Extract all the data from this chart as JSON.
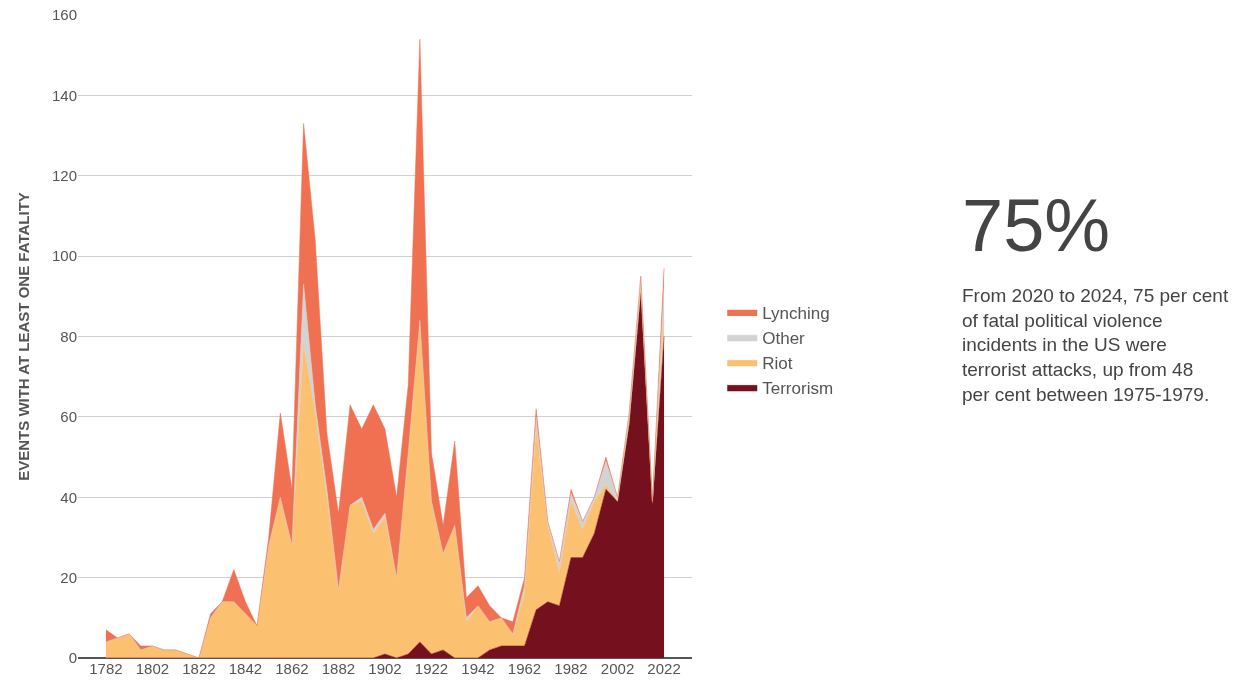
{
  "chart_data": {
    "type": "area",
    "stacked": true,
    "ylabel": "EVENTS WITH AT LEAST ONE FATALITY",
    "x": [
      1782,
      1787,
      1792,
      1797,
      1802,
      1807,
      1812,
      1817,
      1822,
      1827,
      1832,
      1837,
      1842,
      1847,
      1852,
      1857,
      1862,
      1867,
      1872,
      1877,
      1882,
      1887,
      1892,
      1897,
      1902,
      1907,
      1912,
      1917,
      1922,
      1927,
      1932,
      1937,
      1942,
      1947,
      1952,
      1957,
      1962,
      1967,
      1972,
      1977,
      1982,
      1987,
      1992,
      1997,
      2002,
      2007,
      2012,
      2017,
      2022
    ],
    "series": [
      {
        "name": "Terrorism",
        "color": "#75111f",
        "values": [
          0,
          0,
          0,
          0,
          0,
          0,
          0,
          0,
          0,
          0,
          0,
          0,
          0,
          0,
          0,
          0,
          0,
          0,
          0,
          0,
          0,
          0,
          0,
          0,
          1,
          0,
          1,
          4,
          1,
          2,
          0,
          0,
          0,
          2,
          3,
          3,
          3,
          12,
          14,
          13,
          25,
          25,
          31,
          42,
          39,
          58,
          91,
          38,
          80
        ]
      },
      {
        "name": "Riot",
        "color": "#fbc170",
        "values": [
          4,
          5,
          6,
          2,
          3,
          2,
          2,
          1,
          0,
          10,
          14,
          14,
          11,
          8,
          28,
          40,
          28,
          78,
          61,
          40,
          17,
          38,
          39,
          31,
          34,
          20,
          50,
          80,
          38,
          24,
          33,
          9,
          13,
          7,
          7,
          3,
          13,
          45,
          19,
          8,
          14,
          7,
          8,
          1,
          0,
          1,
          1,
          1,
          4
        ]
      },
      {
        "name": "Other",
        "color": "#d3d3d3",
        "values": [
          0,
          0,
          0,
          0,
          0,
          0,
          0,
          0,
          0,
          0,
          0,
          0,
          0,
          0,
          0,
          0,
          0,
          15,
          2,
          2,
          0,
          0,
          1,
          1,
          1,
          0,
          0,
          0,
          0,
          0,
          0,
          1,
          0,
          0,
          0,
          0,
          2,
          3,
          1,
          3,
          2,
          2,
          1,
          6,
          1,
          2,
          3,
          0,
          9
        ]
      },
      {
        "name": "Lynching",
        "color": "#f07152",
        "values": [
          3,
          0,
          0,
          1,
          0,
          0,
          0,
          0,
          0,
          1,
          0,
          8,
          3,
          0,
          2,
          21,
          14,
          40,
          41,
          14,
          19,
          25,
          17,
          31,
          21,
          20,
          17,
          70,
          12,
          7,
          21,
          5,
          5,
          4,
          0,
          3,
          2,
          2,
          0,
          0,
          1,
          0,
          0,
          1,
          0,
          0,
          0,
          0,
          4
        ]
      }
    ],
    "xlim": [
      1770,
      2034
    ],
    "xticks": [
      1782,
      1802,
      1822,
      1842,
      1862,
      1882,
      1902,
      1922,
      1942,
      1962,
      1982,
      2002,
      2022
    ],
    "ylim": [
      0,
      160
    ],
    "yticks": [
      0,
      20,
      40,
      60,
      80,
      100,
      120,
      140,
      160
    ],
    "grid": "y",
    "legend": "right",
    "annotations": [
      "75%",
      "From 2020 to 2024, 75 per cent of fatal political violence incidents in the US were terrorist attacks, up from 48 per cent between 1975-1979."
    ]
  }
}
